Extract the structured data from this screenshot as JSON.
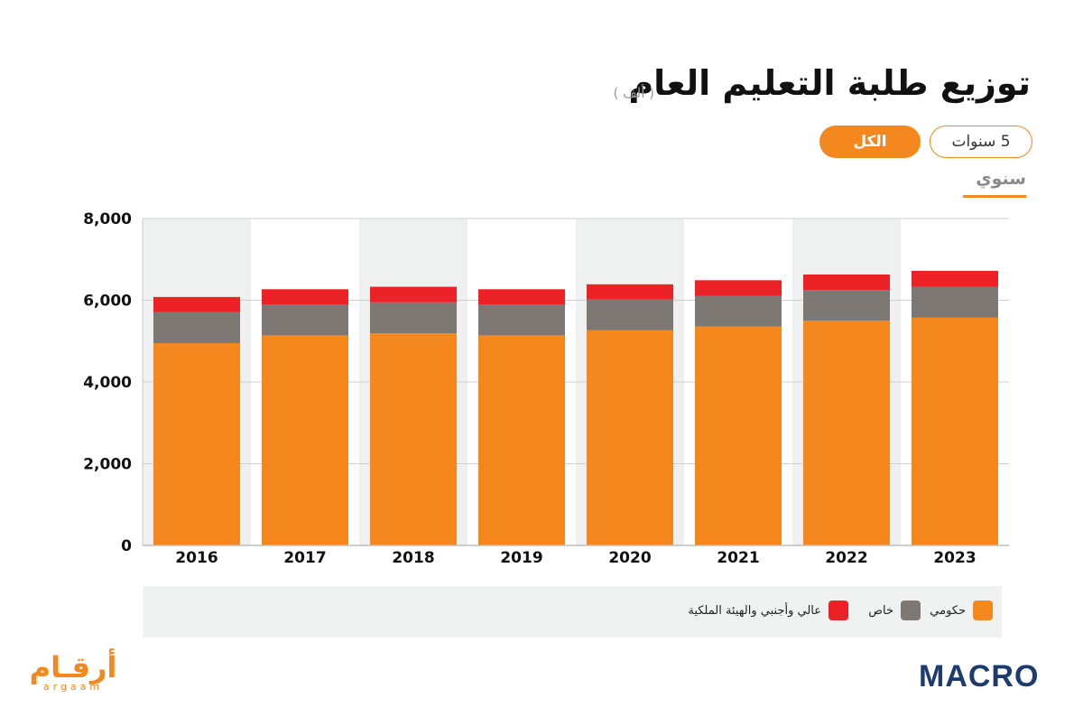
{
  "header": {
    "title": "توزيع طلبة التعليم العام",
    "unit": "( ألف )"
  },
  "filters": {
    "range_5y": "5 سنوات",
    "range_all": "الكل",
    "active": "الكل"
  },
  "period": "سنوي",
  "legend": [
    {
      "label": "حكومي",
      "color": "#f5871f"
    },
    {
      "label": "خاص",
      "color": "#7d7873"
    },
    {
      "label": "عالي وأجنبي والهيئة الملكية",
      "color": "#ec2227"
    }
  ],
  "brand": {
    "arqaam_ar": "أرقـام",
    "arqaam_en": "argaam",
    "macro": "MACRO"
  },
  "chart_data": {
    "type": "bar",
    "stacked": true,
    "categories": [
      "2016",
      "2017",
      "2018",
      "2019",
      "2020",
      "2021",
      "2022",
      "2023"
    ],
    "series": [
      {
        "name": "حكومي",
        "color": "#f5871f",
        "values": [
          4950,
          5140,
          5190,
          5140,
          5270,
          5360,
          5500,
          5580
        ]
      },
      {
        "name": "خاص",
        "color": "#7d7873",
        "values": [
          760,
          760,
          760,
          760,
          750,
          750,
          750,
          750
        ]
      },
      {
        "name": "عالي وأجنبي والهيئة الملكية",
        "color": "#ec2227",
        "values": [
          370,
          370,
          380,
          370,
          370,
          380,
          380,
          390
        ]
      }
    ],
    "ylim": [
      0,
      8000
    ],
    "yticks": [
      "0",
      "2,000",
      "4,000",
      "6,000",
      "8,000"
    ],
    "ytick_values": [
      0,
      2000,
      4000,
      6000,
      8000
    ],
    "grid": true
  }
}
